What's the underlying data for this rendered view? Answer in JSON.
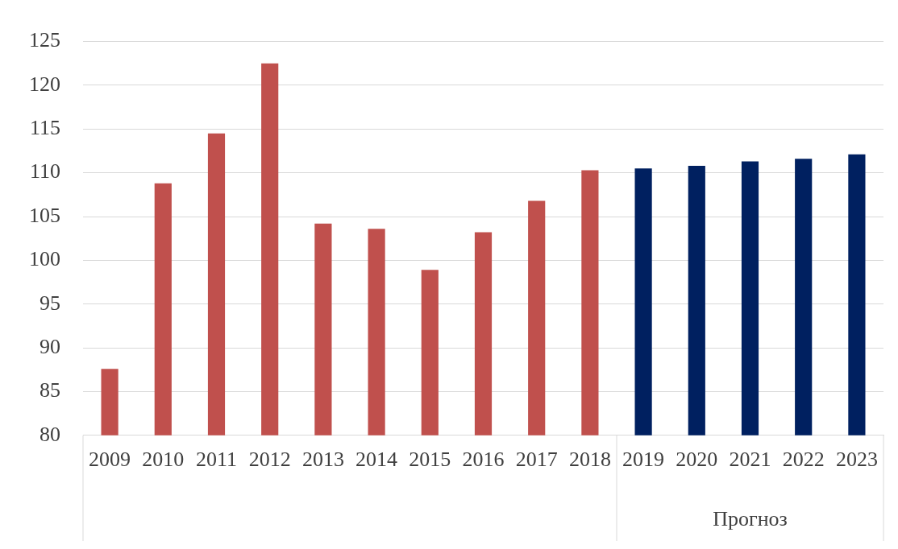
{
  "chart_data": {
    "type": "bar",
    "categories": [
      "2009",
      "2010",
      "2011",
      "2012",
      "2013",
      "2014",
      "2015",
      "2016",
      "2017",
      "2018",
      "2019",
      "2020",
      "2021",
      "2022",
      "2023"
    ],
    "values": [
      87.6,
      108.8,
      114.5,
      122.5,
      104.2,
      103.6,
      98.9,
      103.2,
      106.8,
      110.3,
      110.5,
      110.8,
      111.3,
      111.6,
      112.1
    ],
    "colors": [
      "#c0504d",
      "#c0504d",
      "#c0504d",
      "#c0504d",
      "#c0504d",
      "#c0504d",
      "#c0504d",
      "#c0504d",
      "#c0504d",
      "#c0504d",
      "#002060",
      "#002060",
      "#002060",
      "#002060",
      "#002060"
    ],
    "ylim": [
      80,
      125
    ],
    "yticks": [
      80,
      85,
      90,
      95,
      100,
      105,
      110,
      115,
      120,
      125
    ],
    "grid": "y",
    "legend": false,
    "annotations": [
      "Прогноз"
    ]
  }
}
